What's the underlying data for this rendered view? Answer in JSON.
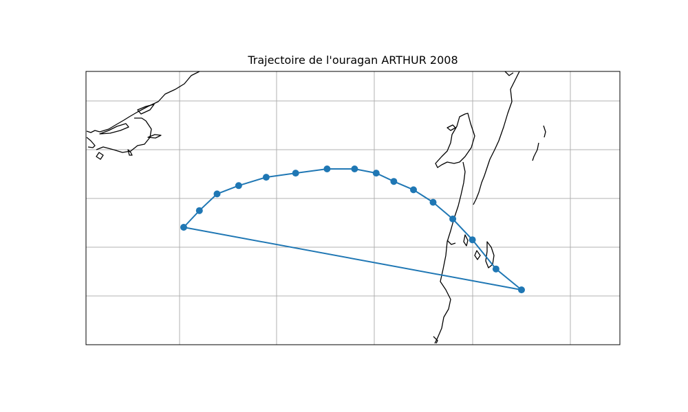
{
  "title": "Trajectoire de l'ouragan ARTHUR 2008",
  "colors": {
    "track": "#1f77b4",
    "coast": "#000000",
    "grid": "#b0b0b0",
    "frame": "#000000"
  },
  "grid": true,
  "track": {
    "name": "ARTHUR 2008",
    "points": [
      {
        "lon": -90.0,
        "lat": 17.0
      },
      {
        "lon": -89.2,
        "lat": 17.4
      },
      {
        "lon": -88.3,
        "lat": 17.8
      },
      {
        "lon": -87.2,
        "lat": 18.0
      },
      {
        "lon": -85.8,
        "lat": 18.2
      },
      {
        "lon": -84.3,
        "lat": 18.3
      },
      {
        "lon": -82.7,
        "lat": 18.4
      },
      {
        "lon": -81.3,
        "lat": 18.4
      },
      {
        "lon": -80.2,
        "lat": 18.3
      },
      {
        "lon": -79.3,
        "lat": 18.1
      },
      {
        "lon": -78.3,
        "lat": 17.9
      },
      {
        "lon": -77.3,
        "lat": 17.6
      },
      {
        "lon": -76.3,
        "lat": 17.2
      },
      {
        "lon": -75.3,
        "lat": 16.7
      },
      {
        "lon": -74.1,
        "lat": 16.0
      },
      {
        "lon": -72.8,
        "lat": 15.5
      }
    ]
  }
}
